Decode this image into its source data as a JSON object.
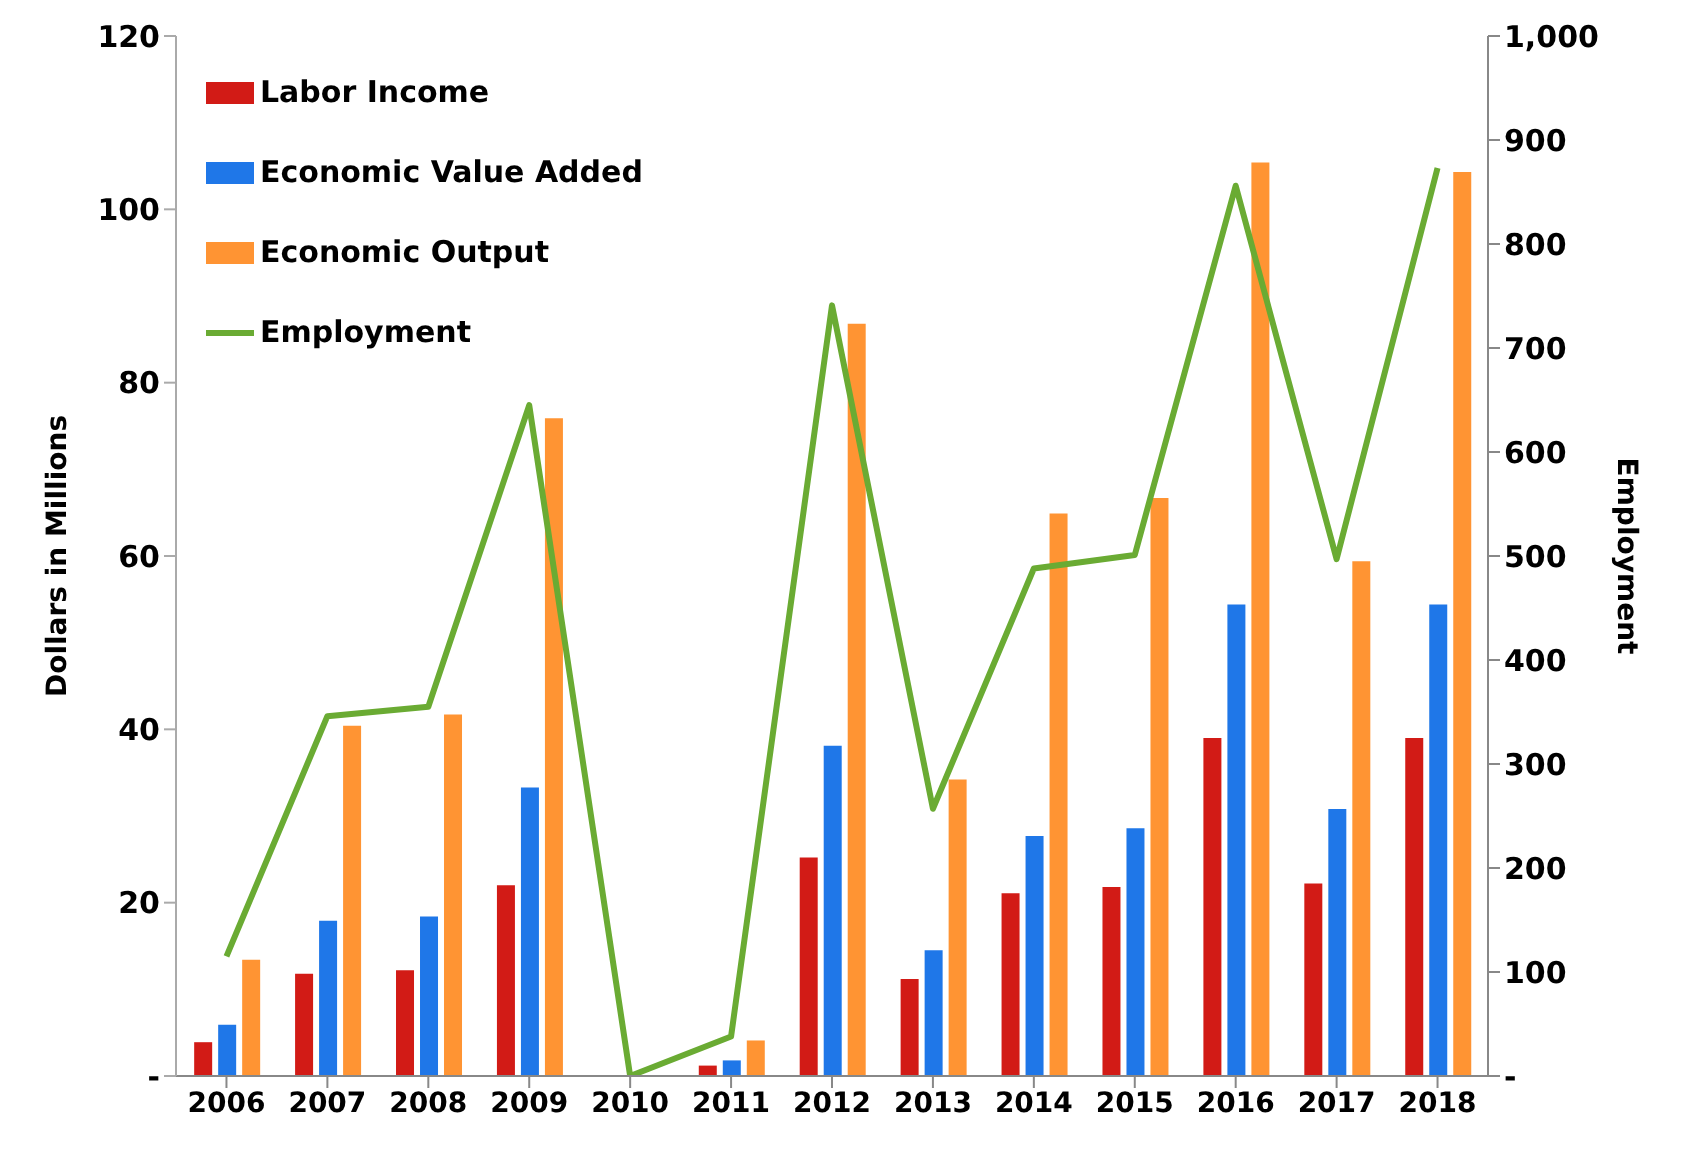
{
  "chart_data": {
    "type": "bar",
    "ylabel": "Dollars in Millions",
    "y2label": "Employment",
    "categories": [
      "2006",
      "2007",
      "2008",
      "2009",
      "2010",
      "2011",
      "2012",
      "2013",
      "2014",
      "2015",
      "2016",
      "2017",
      "2018"
    ],
    "series": [
      {
        "name": "Labor Income",
        "color": "#d21b16",
        "values": [
          3.9,
          11.8,
          12.2,
          22,
          0,
          1.2,
          25.2,
          11.2,
          21.1,
          21.8,
          39,
          22.2,
          39
        ]
      },
      {
        "name": "Economic Value Added",
        "color": "#1f77e8",
        "values": [
          5.9,
          17.9,
          18.4,
          33.3,
          0,
          1.8,
          38.1,
          14.5,
          27.7,
          28.6,
          54.4,
          30.8,
          54.4
        ]
      },
      {
        "name": "Economic Output",
        "color": "#ff9433",
        "values": [
          13.4,
          40.4,
          41.7,
          75.9,
          0,
          4.1,
          86.8,
          34.2,
          64.9,
          66.7,
          105.4,
          59.4,
          104.3
        ]
      },
      {
        "name": "Employment",
        "type": "line",
        "axis": "y2",
        "color": "#6aab33",
        "values": [
          115,
          346,
          355,
          645,
          0,
          38,
          741,
          257,
          488,
          501,
          856,
          497,
          873
        ]
      }
    ],
    "ylim": [
      0,
      120
    ],
    "yticks": [
      {
        "value": 0,
        "label": "-"
      },
      20,
      40,
      60,
      80,
      100,
      120
    ],
    "y2lim": [
      0,
      1000
    ],
    "y2ticks": [
      {
        "value": 0,
        "label": "-"
      },
      100,
      200,
      300,
      400,
      500,
      600,
      700,
      800,
      900,
      {
        "value": 1000,
        "label": "1,000"
      }
    ],
    "legend": "top left",
    "grid": false,
    "marker": "none"
  }
}
